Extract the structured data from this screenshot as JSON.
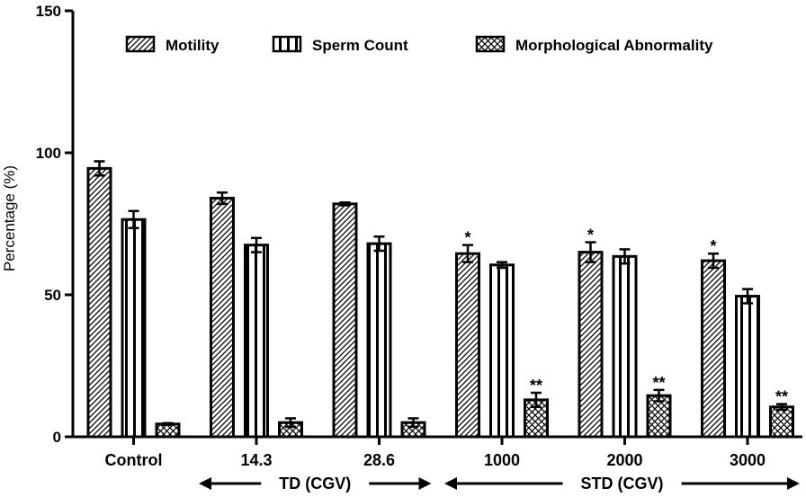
{
  "chart_data": {
    "type": "bar",
    "ylabel": "Percentage (%)",
    "ylim": [
      0,
      150
    ],
    "yticks": [
      0,
      50,
      100,
      150
    ],
    "categories": [
      "Control",
      "14.3",
      "28.6",
      "1000",
      "2000",
      "3000"
    ],
    "series": [
      {
        "name": "Motility",
        "pattern": "diagonal-hatch",
        "values": [
          94.5,
          84,
          82,
          64.5,
          65,
          62
        ],
        "errors": [
          2.5,
          2,
          0.5,
          3,
          3.5,
          2.5
        ],
        "significance": [
          "",
          "",
          "",
          "*",
          "*",
          "*"
        ]
      },
      {
        "name": "Sperm Count",
        "pattern": "vertical-stripes",
        "values": [
          76.5,
          67.5,
          68,
          60.5,
          63.5,
          49.5
        ],
        "errors": [
          3,
          2.5,
          2.5,
          1,
          2.5,
          2.5
        ],
        "significance": [
          "",
          "",
          "",
          "",
          "",
          ""
        ]
      },
      {
        "name": "Morphological Abnormality",
        "pattern": "crosshatch",
        "values": [
          4.5,
          5,
          5,
          13,
          14.5,
          10.5
        ],
        "errors": [
          0.3,
          1.5,
          1.5,
          2.5,
          2,
          1
        ],
        "significance": [
          "",
          "",
          "",
          "**",
          "**",
          "**"
        ]
      }
    ],
    "groups": [
      {
        "label": "TD (CGV)",
        "from": 1,
        "to": 2
      },
      {
        "label": "STD (CGV)",
        "from": 3,
        "to": 5
      }
    ],
    "legend_position": "top",
    "grid": false
  }
}
